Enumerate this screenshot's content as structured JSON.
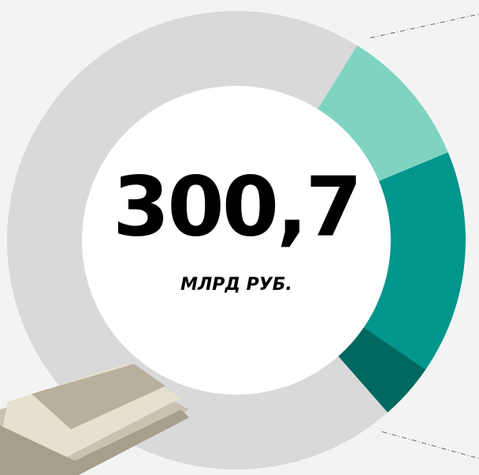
{
  "chart_data": {
    "type": "donut",
    "center_value": "300,7",
    "center_label": "МЛРД РУБ.",
    "values": [
      9.9,
      15.8,
      4.0,
      70.3
    ],
    "colors": [
      "#7fd4c1",
      "#00968c",
      "#00695f",
      "#d9d9d9"
    ],
    "start_angle": 31.8
  }
}
